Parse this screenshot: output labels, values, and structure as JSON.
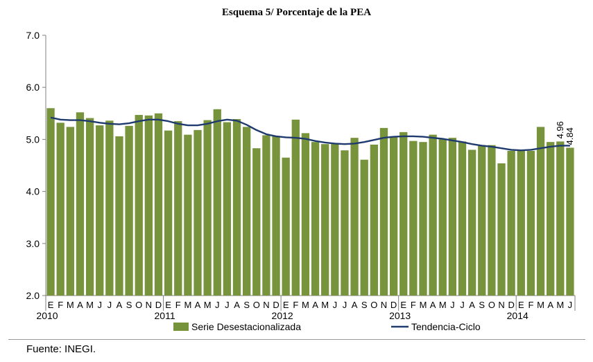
{
  "title": "Esquema 5/ Porcentaje de la PEA",
  "source": "Fuente: INEGI.",
  "chart_data": {
    "type": "bar",
    "ylim": [
      2.0,
      7.0
    ],
    "yticks": [
      "2.0",
      "3.0",
      "4.0",
      "5.0",
      "6.0",
      "7.0"
    ],
    "grid": false,
    "legend_position": "bottom",
    "months": [
      "E",
      "F",
      "M",
      "A",
      "M",
      "J",
      "J",
      "A",
      "S",
      "O",
      "N",
      "D",
      "E",
      "F",
      "M",
      "A",
      "M",
      "J",
      "J",
      "A",
      "S",
      "O",
      "N",
      "D",
      "E",
      "F",
      "M",
      "A",
      "M",
      "J",
      "J",
      "A",
      "S",
      "O",
      "N",
      "D",
      "E",
      "F",
      "M",
      "A",
      "M",
      "J",
      "J",
      "A",
      "S",
      "O",
      "N",
      "D",
      "E",
      "F",
      "M",
      "A",
      "M",
      "J"
    ],
    "years": [
      {
        "label": "2010",
        "index": 0
      },
      {
        "label": "2011",
        "index": 12
      },
      {
        "label": "2012",
        "index": 24
      },
      {
        "label": "2013",
        "index": 36
      },
      {
        "label": "2014",
        "index": 48
      }
    ],
    "series": [
      {
        "name": "Serie Desestacionalizada",
        "kind": "bar",
        "color": "#77933c",
        "values": [
          5.6,
          5.32,
          5.24,
          5.52,
          5.41,
          5.27,
          5.36,
          5.06,
          5.26,
          5.47,
          5.46,
          5.5,
          5.17,
          5.35,
          5.09,
          5.18,
          5.37,
          5.58,
          5.33,
          5.39,
          5.24,
          4.83,
          5.08,
          5.06,
          4.65,
          5.38,
          5.12,
          4.95,
          4.91,
          4.91,
          4.79,
          5.03,
          4.61,
          4.9,
          5.22,
          5.06,
          5.14,
          4.97,
          4.95,
          5.09,
          5.0,
          5.03,
          4.96,
          4.8,
          4.89,
          4.89,
          4.54,
          4.78,
          4.78,
          4.78,
          5.24,
          4.95,
          4.96,
          4.84
        ]
      },
      {
        "name": "Tendencia-Ciclo",
        "kind": "line",
        "color": "#1f3a6e",
        "values": [
          5.42,
          5.38,
          5.37,
          5.37,
          5.35,
          5.32,
          5.3,
          5.29,
          5.31,
          5.35,
          5.38,
          5.38,
          5.35,
          5.3,
          5.27,
          5.27,
          5.3,
          5.35,
          5.38,
          5.36,
          5.28,
          5.18,
          5.1,
          5.06,
          5.04,
          5.03,
          5.01,
          4.97,
          4.94,
          4.92,
          4.91,
          4.92,
          4.95,
          4.99,
          5.03,
          5.05,
          5.06,
          5.06,
          5.05,
          5.03,
          5.01,
          4.98,
          4.95,
          4.91,
          4.88,
          4.86,
          4.83,
          4.8,
          4.79,
          4.8,
          4.83,
          4.86,
          4.88,
          4.88
        ]
      }
    ],
    "annotations": [
      "4.96",
      "4.84"
    ]
  }
}
